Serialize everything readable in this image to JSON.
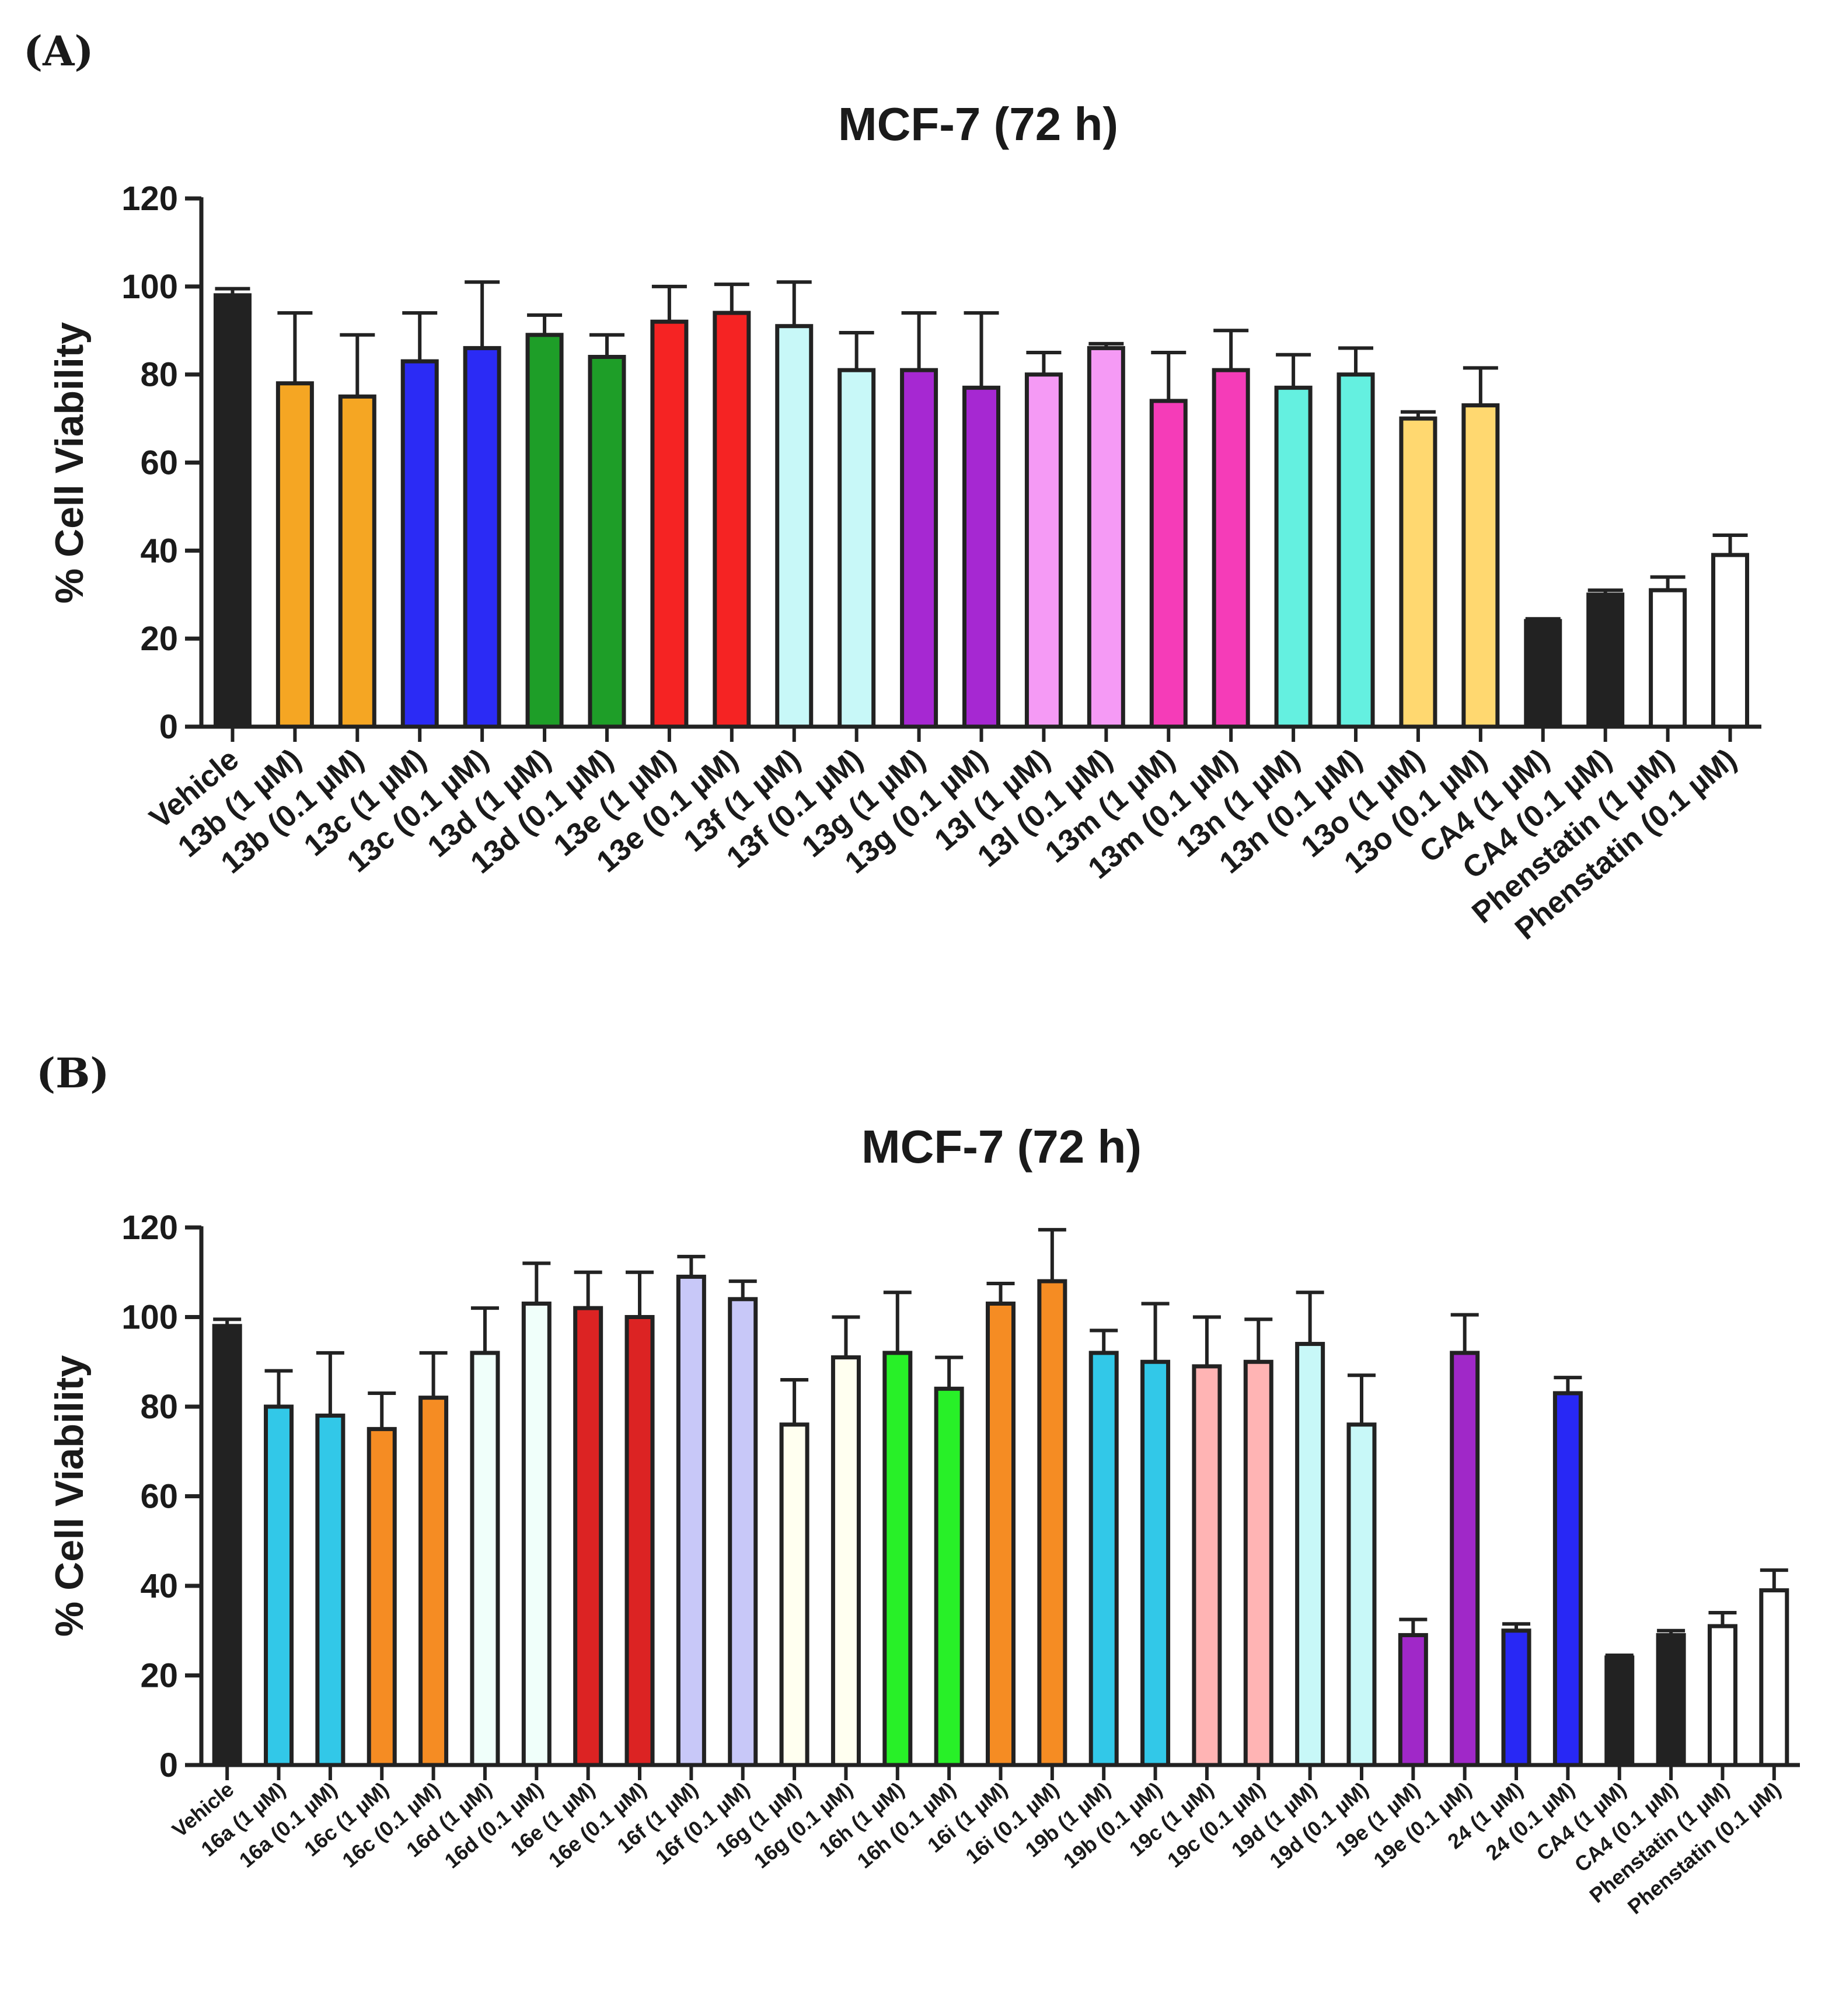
{
  "chart_data": [
    {
      "panel": "(A)",
      "type": "bar",
      "title": "MCF-7 (72 h)",
      "xlabel": "",
      "ylabel": "% Cell Viability",
      "ylim": [
        0,
        120
      ],
      "yticks": [
        0,
        20,
        40,
        60,
        80,
        100,
        120
      ],
      "categories": [
        "Vehicle",
        "13b (1 µM)",
        "13b (0.1 µM)",
        "13c (1 µM)",
        "13c (0.1 µM)",
        "13d (1 µM)",
        "13d (0.1 µM)",
        "13e (1 µM)",
        "13e (0.1 µM)",
        "13f (1 µM)",
        "13f (0.1 µM)",
        "13g (1 µM)",
        "13g (0.1 µM)",
        "13l (1 µM)",
        "13l (0.1 µM)",
        "13m (1 µM)",
        "13m (0.1 µM)",
        "13n (1 µM)",
        "13n (0.1 µM)",
        "13o (1 µM)",
        "13o (0.1 µM)",
        "CA4 (1 µM)",
        "CA4 (0.1 µM)",
        "Phenstatin (1 µM)",
        "Phenstatin (0.1 µM)"
      ],
      "values": [
        98,
        78,
        75,
        83,
        86,
        89,
        84,
        92,
        94,
        91,
        81,
        81,
        77,
        80,
        86,
        74,
        81,
        77,
        80,
        70,
        73,
        24,
        30,
        31,
        39
      ],
      "errors": [
        1.5,
        16,
        14,
        11,
        15,
        4.5,
        5,
        8,
        6.5,
        10,
        8.5,
        13,
        17,
        5,
        1,
        11,
        9,
        7.5,
        6,
        1.5,
        8.5,
        0.5,
        1,
        3,
        4.5
      ],
      "colors": [
        "#222222",
        "#f5a623",
        "#f5a623",
        "#2b2bf5",
        "#2b2bf5",
        "#1e9e28",
        "#1e9e28",
        "#f52323",
        "#f52323",
        "#c8f8f8",
        "#c8f8f8",
        "#a628d2",
        "#a628d2",
        "#f59af5",
        "#f59af5",
        "#f53cb8",
        "#f53cb8",
        "#64f0e0",
        "#64f0e0",
        "#ffd870",
        "#ffd870",
        "#222222",
        "#222222",
        "#ffffff",
        "#ffffff"
      ]
    },
    {
      "panel": "(B)",
      "type": "bar",
      "title": "MCF-7 (72 h)",
      "xlabel": "",
      "ylabel": "% Cell Viability",
      "ylim": [
        0,
        120
      ],
      "yticks": [
        0,
        20,
        40,
        60,
        80,
        100,
        120
      ],
      "categories": [
        "Vehicle",
        "16a (1 µM)",
        "16a (0.1 µM)",
        "16c (1 µM)",
        "16c (0.1 µM)",
        "16d (1 µM)",
        "16d (0.1 µM)",
        "16e (1 µM)",
        "16e (0.1 µM)",
        "16f (1 µM)",
        "16f (0.1 µM)",
        "16g (1 µM)",
        "16g (0.1 µM)",
        "16h (1 µM)",
        "16h (0.1 µM)",
        "16i (1 µM)",
        "16i (0.1 µM)",
        "19b (1 µM)",
        "19b (0.1 µM)",
        "19c (1 µM)",
        "19c (0.1 µM)",
        "19d (1 µM)",
        "19d (0.1 µM)",
        "19e (1 µM)",
        "19e (0.1 µM)",
        "24 (1 µM)",
        "24 (0.1 µM)",
        "CA4 (1 µM)",
        "CA4 (0.1 µM)",
        "Phenstatin (1 µM)",
        "Phenstatin (0.1 µM)"
      ],
      "values": [
        98,
        80,
        78,
        75,
        82,
        92,
        103,
        102,
        100,
        109,
        104,
        76,
        91,
        92,
        84,
        103,
        108,
        92,
        90,
        89,
        90,
        94,
        76,
        29,
        92,
        30,
        83,
        24,
        29,
        31,
        39
      ],
      "errors": [
        1.5,
        8,
        14,
        8,
        10,
        10,
        9,
        8,
        10,
        4.5,
        4,
        10,
        9,
        13.5,
        7,
        4.5,
        11.5,
        5,
        13,
        11,
        9.5,
        11.5,
        11,
        3.5,
        8.5,
        1.5,
        3.5,
        0.5,
        1,
        3,
        4.5
      ],
      "colors": [
        "#222222",
        "#32c8e8",
        "#32c8e8",
        "#f58c23",
        "#f58c23",
        "#f0fffa",
        "#f0fffa",
        "#dc2323",
        "#dc2323",
        "#c8c8f8",
        "#c8c8f8",
        "#fffff0",
        "#fffff0",
        "#28f028",
        "#28f028",
        "#f58c23",
        "#f58c23",
        "#32c8e8",
        "#32c8e8",
        "#ffb4b4",
        "#ffb4b4",
        "#c8f8f8",
        "#c8f8f8",
        "#a028c8",
        "#a028c8",
        "#2828f5",
        "#2828f5",
        "#222222",
        "#222222",
        "#ffffff",
        "#ffffff"
      ]
    }
  ]
}
